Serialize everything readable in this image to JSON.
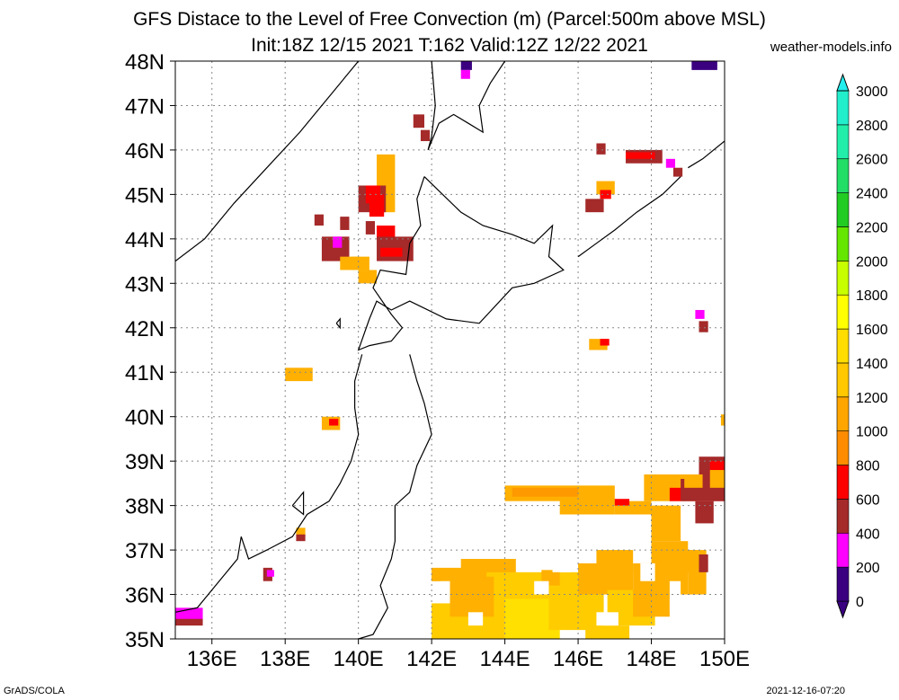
{
  "header": {
    "title_line1": "GFS Distace to the Level of Free Convection (m) (Parcel:500m above MSL)",
    "title_line2": "Init:18Z 12/15 2021 T:162 Valid:12Z 12/22 2021",
    "site": "weather-models.info"
  },
  "footer": {
    "left": "GrADS/COLA",
    "right": "2021-12-16-07:20"
  },
  "map": {
    "lat_labels": [
      "35N",
      "36N",
      "37N",
      "38N",
      "39N",
      "40N",
      "41N",
      "42N",
      "43N",
      "44N",
      "45N",
      "46N",
      "47N",
      "48N"
    ],
    "lon_labels": [
      "136E",
      "138E",
      "140E",
      "142E",
      "144E",
      "146E",
      "148E",
      "150E"
    ],
    "lat_range": [
      35,
      48
    ],
    "lon_range": [
      135,
      150
    ],
    "grid": true,
    "grid_style": "dotted"
  },
  "colorbar": {
    "labels": [
      "0",
      "200",
      "400",
      "600",
      "800",
      "1000",
      "1200",
      "1400",
      "1600",
      "1800",
      "2000",
      "2200",
      "2400",
      "2600",
      "2800",
      "3000"
    ],
    "colors": [
      "#3a0080",
      "#ff00ff",
      "#a52a2a",
      "#ff0000",
      "#ff8c00",
      "#ffa500",
      "#ffc800",
      "#ffdd00",
      "#ffff00",
      "#c8ff00",
      "#64e600",
      "#22cc22",
      "#22dd66",
      "#22eeaa",
      "#22eecc",
      "#22eeee"
    ]
  },
  "colors": {
    "c0": "#3a0080",
    "c200": "#ff00ff",
    "c400": "#a52a2a",
    "c600": "#ff0000",
    "c800": "#ff9900",
    "c1000": "#ffb000",
    "c1200": "#ffcc00",
    "c1400": "#ffe000"
  }
}
